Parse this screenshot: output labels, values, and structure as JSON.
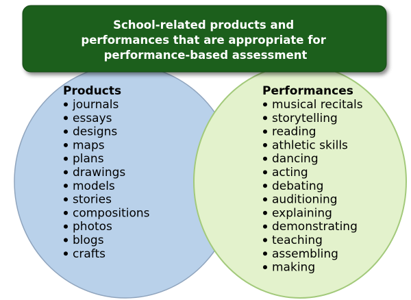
{
  "banner": {
    "lines": [
      "School-related products and",
      "performances that are appropriate for",
      "performance-based assessment"
    ]
  },
  "products": {
    "heading": "Products",
    "items": [
      "journals",
      "essays",
      "designs",
      "maps",
      "plans",
      "drawings",
      "models",
      "stories",
      "compositions",
      "photos",
      "blogs",
      "crafts"
    ]
  },
  "performances": {
    "heading": "Performances",
    "items": [
      "musical recitals",
      "storytelling",
      "reading",
      "athletic skills",
      "dancing",
      "acting",
      "debating",
      "auditioning",
      "explaining",
      "demonstrating",
      "teaching",
      "assembling",
      "making"
    ]
  },
  "colors": {
    "banner": "#1e5e1e",
    "banner_edge": "#154a15",
    "products_fill": "#b9d1ea",
    "products_edge": "#8fa4bd",
    "performances_fill": "#e3f2cc",
    "performances_edge": "#a2c97a"
  }
}
